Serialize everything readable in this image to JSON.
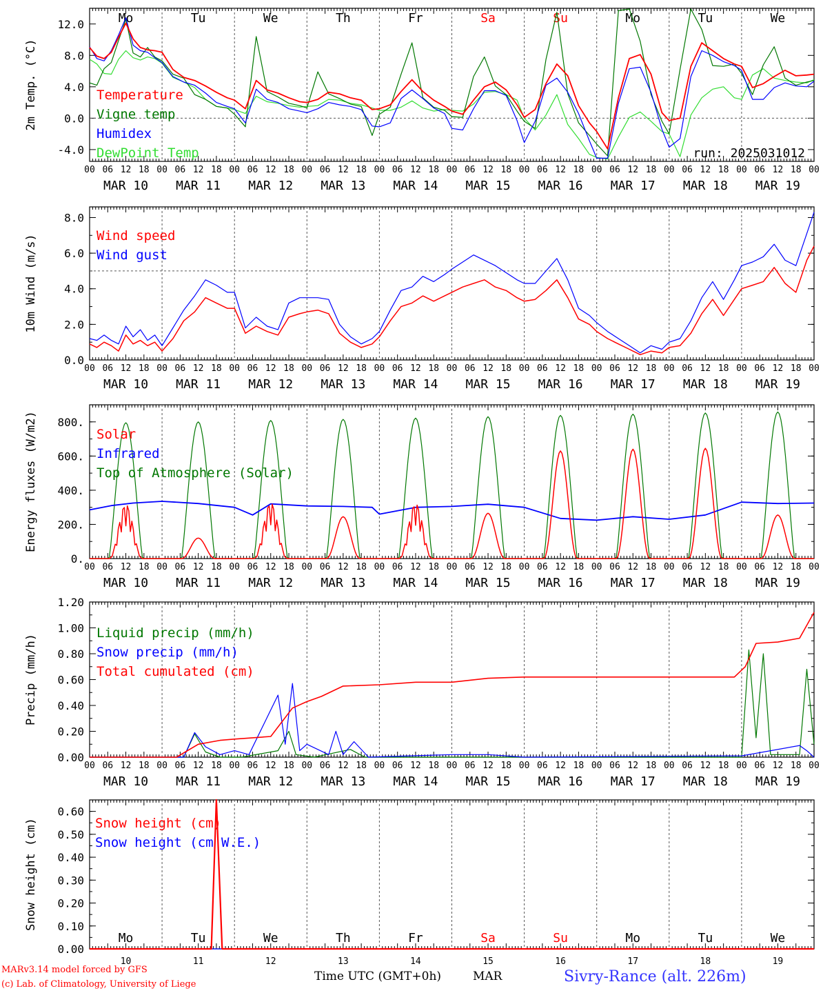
{
  "days": [
    {
      "date": "MAR 10",
      "dow": "Mo",
      "weekend": false,
      "num": "10"
    },
    {
      "date": "MAR 11",
      "dow": "Tu",
      "weekend": false,
      "num": "11"
    },
    {
      "date": "MAR 12",
      "dow": "We",
      "weekend": false,
      "num": "12"
    },
    {
      "date": "MAR 13",
      "dow": "Th",
      "weekend": false,
      "num": "13"
    },
    {
      "date": "MAR 14",
      "dow": "Fr",
      "weekend": false,
      "num": "14"
    },
    {
      "date": "MAR 15",
      "dow": "Sa",
      "weekend": true,
      "num": "15"
    },
    {
      "date": "MAR 16",
      "dow": "Su",
      "weekend": true,
      "num": "16"
    },
    {
      "date": "MAR 17",
      "dow": "Mo",
      "weekend": false,
      "num": "17"
    },
    {
      "date": "MAR 18",
      "dow": "Tu",
      "weekend": false,
      "num": "18"
    },
    {
      "date": "MAR 19",
      "dow": "We",
      "weekend": false,
      "num": "19"
    }
  ],
  "hour_ticks": [
    "00",
    "06",
    "12",
    "18"
  ],
  "colors": {
    "red": "#ff0000",
    "green": "#007700",
    "blue": "#0000ff",
    "lightgreen": "#33dd33",
    "weekend": "#ff0000",
    "location": "#3333ff"
  },
  "footer": {
    "model": "MARv3.14 model forced by GFS",
    "lab": "(c) Lab. of Climatology, University of Liege",
    "xlabel": "Time UTC (GMT+0h)",
    "month": "MAR",
    "location": "Sivry-Rance (alt. 226m)"
  },
  "chart_data": [
    {
      "type": "line",
      "ylabel": "2m Temp. (oC)",
      "ylim": [
        -5.5,
        14.0
      ],
      "yticks": [
        -4.0,
        0.0,
        4.0,
        8.0,
        12.0
      ],
      "ytick_labels": [
        "-4.0",
        "0.0",
        "4.0",
        "8.0",
        "12.0"
      ],
      "reference_line": 0,
      "annotation": "run: 2025031012",
      "x_days": [
        0,
        0.1,
        0.2,
        0.3,
        0.4,
        0.5,
        0.6,
        0.7,
        0.8,
        0.9,
        1.0,
        1.15,
        1.3,
        1.45,
        1.6,
        1.75,
        1.9,
        2.0,
        2.15,
        2.3,
        2.45,
        2.6,
        2.75,
        2.9,
        3.0,
        3.15,
        3.3,
        3.45,
        3.6,
        3.75,
        3.9,
        4.0,
        4.15,
        4.3,
        4.45,
        4.6,
        4.75,
        4.9,
        5.0,
        5.15,
        5.3,
        5.45,
        5.6,
        5.75,
        5.9,
        6.0,
        6.15,
        6.3,
        6.45,
        6.6,
        6.75,
        6.9,
        7.0,
        7.15,
        7.3,
        7.45,
        7.6,
        7.75,
        7.9,
        8.0,
        8.15,
        8.3,
        8.45,
        8.6,
        8.75,
        8.9,
        9.0,
        9.15,
        9.3,
        9.45,
        9.6,
        9.75,
        9.9,
        10.0
      ],
      "series": [
        {
          "name": "Temperature",
          "color": "red",
          "values": [
            9.0,
            7.9,
            7.6,
            8.4,
            10.3,
            12.1,
            10.1,
            9.0,
            8.7,
            8.6,
            8.4,
            6.2,
            5.2,
            4.8,
            4.1,
            3.3,
            2.6,
            2.3,
            1.2,
            4.8,
            3.6,
            3.2,
            2.6,
            2.1,
            2.0,
            2.4,
            3.3,
            3.1,
            2.6,
            2.3,
            1.1,
            1.2,
            1.7,
            3.4,
            4.9,
            3.4,
            2.3,
            1.5,
            0.9,
            0.5,
            2.3,
            4.0,
            4.6,
            3.6,
            1.7,
            0.1,
            1.1,
            4.4,
            6.9,
            5.4,
            1.6,
            -0.6,
            -1.7,
            -3.9,
            2.6,
            7.6,
            8.1,
            5.6,
            0.7,
            -0.3,
            0.0,
            6.6,
            9.6,
            8.6,
            7.6,
            6.9,
            6.6,
            3.9,
            4.4,
            5.3,
            6.1,
            5.4,
            5.5,
            5.6
          ]
        },
        {
          "name": "Vigne temp",
          "color": "green",
          "values": [
            4.5,
            4.2,
            6.3,
            7.1,
            9.9,
            12.6,
            8.3,
            7.8,
            9.0,
            7.8,
            7.3,
            5.6,
            5.1,
            3.0,
            2.4,
            1.5,
            1.3,
            0.5,
            -1.1,
            10.4,
            3.4,
            2.7,
            1.9,
            1.6,
            1.3,
            5.9,
            3.1,
            2.5,
            1.8,
            1.5,
            -2.2,
            0.5,
            1.4,
            5.6,
            9.6,
            2.6,
            1.4,
            1.0,
            0.2,
            0.1,
            5.3,
            7.8,
            4.1,
            3.0,
            0.9,
            -0.4,
            -1.3,
            7.5,
            13.5,
            3.1,
            -0.6,
            -2.2,
            -3.3,
            -4.8,
            13.7,
            13.9,
            9.8,
            3.0,
            -0.4,
            -2.0,
            6.2,
            13.9,
            11.3,
            6.7,
            6.6,
            6.9,
            5.7,
            3.0,
            6.8,
            9.1,
            5.1,
            4.2,
            4.6,
            4.8
          ]
        },
        {
          "name": "Humidex",
          "color": "blue",
          "values": [
            9.1,
            7.6,
            7.3,
            8.6,
            10.6,
            12.8,
            9.3,
            8.6,
            8.4,
            7.7,
            7.1,
            5.3,
            4.6,
            4.2,
            3.2,
            2.0,
            1.5,
            1.2,
            -0.6,
            3.7,
            2.4,
            2.0,
            1.2,
            0.9,
            0.7,
            1.2,
            2.0,
            1.7,
            1.5,
            1.1,
            -1.0,
            -1.1,
            -0.6,
            2.5,
            3.6,
            2.5,
            1.3,
            0.6,
            -1.3,
            -1.5,
            1.2,
            3.5,
            3.5,
            2.9,
            -0.3,
            -3.1,
            -0.4,
            4.2,
            5.1,
            3.3,
            0.6,
            -2.9,
            -5.1,
            -5.1,
            1.9,
            6.3,
            6.5,
            3.3,
            -1.4,
            -3.7,
            -2.6,
            5.3,
            8.6,
            8.0,
            7.2,
            6.7,
            6.1,
            2.4,
            2.4,
            3.9,
            4.5,
            4.1,
            4.0,
            4.7
          ]
        },
        {
          "name": "DewPoint Temp",
          "color": "lightgreen",
          "values": [
            7.5,
            6.9,
            5.7,
            5.6,
            7.5,
            8.6,
            7.7,
            7.4,
            7.8,
            7.6,
            7.0,
            5.2,
            4.6,
            3.9,
            2.4,
            1.5,
            1.3,
            1.1,
            0.6,
            2.8,
            2.1,
            1.9,
            1.6,
            1.4,
            1.5,
            1.6,
            2.4,
            2.3,
            1.9,
            1.7,
            1.3,
            1.0,
            1.0,
            1.4,
            2.2,
            1.3,
            0.9,
            1.1,
            1.0,
            0.9,
            1.8,
            3.3,
            3.4,
            3.0,
            2.3,
            0.0,
            -1.5,
            0.4,
            3.0,
            -0.8,
            -2.6,
            -4.6,
            -5.0,
            -5.2,
            -2.4,
            0.1,
            0.8,
            -0.4,
            -1.7,
            -2.0,
            -4.9,
            0.4,
            2.6,
            3.7,
            4.0,
            2.6,
            2.4,
            5.5,
            6.3,
            5.1,
            4.8,
            4.6,
            4.5,
            4.9
          ]
        }
      ]
    },
    {
      "type": "line",
      "ylabel": "10m Wind (m/s)",
      "ylim": [
        0,
        8.6
      ],
      "yticks": [
        0.0,
        2.0,
        4.0,
        6.0,
        8.0
      ],
      "ytick_labels": [
        "0.0",
        "2.0",
        "4.0",
        "6.0",
        "8.0"
      ],
      "reference_line": 5,
      "x_days": [
        0,
        0.1,
        0.2,
        0.3,
        0.4,
        0.5,
        0.6,
        0.7,
        0.8,
        0.9,
        1.0,
        1.15,
        1.3,
        1.45,
        1.6,
        1.75,
        1.9,
        2.0,
        2.15,
        2.3,
        2.45,
        2.6,
        2.75,
        2.9,
        3.0,
        3.15,
        3.3,
        3.45,
        3.6,
        3.75,
        3.9,
        4.0,
        4.15,
        4.3,
        4.45,
        4.6,
        4.75,
        4.9,
        5.0,
        5.15,
        5.3,
        5.45,
        5.6,
        5.75,
        5.9,
        6.0,
        6.15,
        6.3,
        6.45,
        6.6,
        6.75,
        6.9,
        7.0,
        7.15,
        7.3,
        7.45,
        7.6,
        7.75,
        7.9,
        8.0,
        8.15,
        8.3,
        8.45,
        8.6,
        8.75,
        8.9,
        9.0,
        9.15,
        9.3,
        9.45,
        9.6,
        9.75,
        9.9,
        10.0
      ],
      "series": [
        {
          "name": "Wind speed",
          "color": "red",
          "values": [
            0.9,
            0.7,
            1.0,
            0.8,
            0.5,
            1.4,
            0.9,
            1.1,
            0.8,
            1.0,
            0.5,
            1.2,
            2.2,
            2.7,
            3.5,
            3.2,
            2.9,
            2.9,
            1.5,
            1.9,
            1.6,
            1.4,
            2.4,
            2.6,
            2.7,
            2.8,
            2.6,
            1.5,
            1.0,
            0.7,
            0.9,
            1.3,
            2.2,
            3.0,
            3.2,
            3.6,
            3.3,
            3.6,
            3.8,
            4.1,
            4.3,
            4.5,
            4.1,
            3.9,
            3.5,
            3.3,
            3.4,
            3.9,
            4.5,
            3.5,
            2.3,
            2.0,
            1.6,
            1.2,
            0.9,
            0.6,
            0.3,
            0.5,
            0.4,
            0.7,
            0.8,
            1.5,
            2.6,
            3.4,
            2.5,
            3.4,
            4.0,
            4.2,
            4.4,
            5.2,
            4.3,
            3.8,
            5.6,
            6.4
          ]
        },
        {
          "name": "Wind gust",
          "color": "blue",
          "values": [
            1.2,
            1.1,
            1.4,
            1.1,
            0.9,
            1.9,
            1.3,
            1.7,
            1.1,
            1.4,
            0.8,
            1.8,
            2.8,
            3.6,
            4.5,
            4.2,
            3.8,
            3.8,
            1.8,
            2.4,
            1.9,
            1.7,
            3.2,
            3.5,
            3.5,
            3.5,
            3.4,
            2.0,
            1.3,
            0.9,
            1.2,
            1.6,
            2.8,
            3.9,
            4.1,
            4.7,
            4.4,
            4.8,
            5.1,
            5.5,
            5.9,
            5.6,
            5.3,
            4.9,
            4.5,
            4.3,
            4.3,
            5.0,
            5.7,
            4.5,
            2.9,
            2.5,
            2.1,
            1.6,
            1.2,
            0.8,
            0.4,
            0.8,
            0.6,
            1.0,
            1.2,
            2.2,
            3.5,
            4.4,
            3.4,
            4.5,
            5.3,
            5.5,
            5.8,
            6.5,
            5.6,
            5.3,
            7.1,
            8.3
          ]
        }
      ]
    },
    {
      "type": "line",
      "ylabel": "Energy fluxes (W/m2)",
      "ylim": [
        0,
        900
      ],
      "yticks": [
        0,
        200,
        400,
        600,
        800
      ],
      "ytick_labels": [
        "0.",
        "200.",
        "400.",
        "600.",
        "800."
      ],
      "infrared": {
        "name": "Infrared",
        "color": "blue",
        "x_days": [
          0,
          0.3,
          0.6,
          1.0,
          1.5,
          2.0,
          2.25,
          2.5,
          3.0,
          3.5,
          3.9,
          4.0,
          4.5,
          5.0,
          5.5,
          6.0,
          6.5,
          7.0,
          7.5,
          8.0,
          8.5,
          9.0,
          9.5,
          10.0
        ],
        "values": [
          285,
          310,
          325,
          335,
          322,
          300,
          255,
          320,
          308,
          305,
          300,
          260,
          300,
          305,
          318,
          300,
          235,
          225,
          245,
          230,
          255,
          330,
          322,
          325
        ]
      },
      "toa": {
        "name": "Top of Atmosphere (Solar)",
        "color": "green",
        "peaks": [
          795,
          800,
          808,
          815,
          822,
          830,
          838,
          845,
          852,
          858
        ]
      },
      "solar": {
        "name": "Solar",
        "color": "red",
        "peaks": [
          330,
          120,
          340,
          245,
          335,
          265,
          630,
          640,
          645,
          255
        ]
      }
    },
    {
      "type": "line",
      "ylabel": "Precip (mm/h)",
      "ylim": [
        0,
        1.2
      ],
      "yticks": [
        0,
        0.2,
        0.4,
        0.6,
        0.8,
        1.0,
        1.2
      ],
      "ytick_labels": [
        "0.00",
        "0.20",
        "0.40",
        "0.60",
        "0.80",
        "1.00",
        "1.20"
      ],
      "series": [
        {
          "name": "Liquid precip (mm/h)",
          "color": "green",
          "x_days": [
            0,
            1.3,
            1.45,
            1.6,
            1.8,
            2.1,
            2.6,
            2.75,
            2.85,
            3.1,
            3.6,
            3.8,
            9.0,
            9.1,
            9.2,
            9.3,
            9.4,
            9.8,
            9.9,
            10.0
          ],
          "values": [
            0,
            0,
            0.18,
            0.04,
            0,
            0,
            0.05,
            0.2,
            0.02,
            0,
            0.06,
            0,
            0,
            0.83,
            0.15,
            0.8,
            0.02,
            0.02,
            0.68,
            0.1
          ]
        },
        {
          "name": "Snow precip (mm/h)",
          "color": "blue",
          "x_days": [
            0,
            1.3,
            1.45,
            1.6,
            1.8,
            2.0,
            2.2,
            2.6,
            2.7,
            2.8,
            2.9,
            3.0,
            3.3,
            3.4,
            3.5,
            3.65,
            3.85,
            5.0,
            5.5,
            6.0,
            9.0,
            9.8,
            9.9,
            10.0
          ],
          "values": [
            0,
            0,
            0.19,
            0.08,
            0.02,
            0.05,
            0.02,
            0.48,
            0.1,
            0.57,
            0.05,
            0.1,
            0.02,
            0.2,
            0.02,
            0.12,
            0,
            0.02,
            0.02,
            0,
            0.01,
            0.09,
            0.05,
            0.0
          ]
        },
        {
          "name": "Total cumulated (cm)",
          "color": "red",
          "x_days": [
            0,
            1.2,
            1.5,
            1.8,
            2.0,
            2.5,
            2.8,
            3.0,
            3.2,
            3.5,
            4.0,
            4.5,
            5.0,
            5.5,
            6.0,
            8.9,
            9.05,
            9.2,
            9.5,
            9.8,
            10.0
          ],
          "values": [
            0,
            0,
            0.1,
            0.13,
            0.14,
            0.16,
            0.38,
            0.43,
            0.47,
            0.55,
            0.56,
            0.58,
            0.58,
            0.61,
            0.62,
            0.62,
            0.7,
            0.88,
            0.89,
            0.92,
            1.12
          ]
        }
      ]
    },
    {
      "type": "line",
      "ylabel": "Snow height (cm)",
      "ylim": [
        0,
        0.65
      ],
      "yticks": [
        0,
        0.1,
        0.2,
        0.3,
        0.4,
        0.5,
        0.6
      ],
      "ytick_labels": [
        "0.00",
        "0.10",
        "0.20",
        "0.30",
        "0.40",
        "0.50",
        "0.60"
      ],
      "series": [
        {
          "name": "Snow height (cm)",
          "color": "red",
          "x_days": [
            0,
            1.68,
            1.75,
            1.83,
            10.0
          ],
          "values": [
            0,
            0,
            0.65,
            0,
            0
          ]
        },
        {
          "name": "Snow height (cm W.E.)",
          "color": "blue",
          "x_days": [
            0,
            10.0
          ],
          "values": [
            0,
            0
          ]
        }
      ]
    }
  ]
}
